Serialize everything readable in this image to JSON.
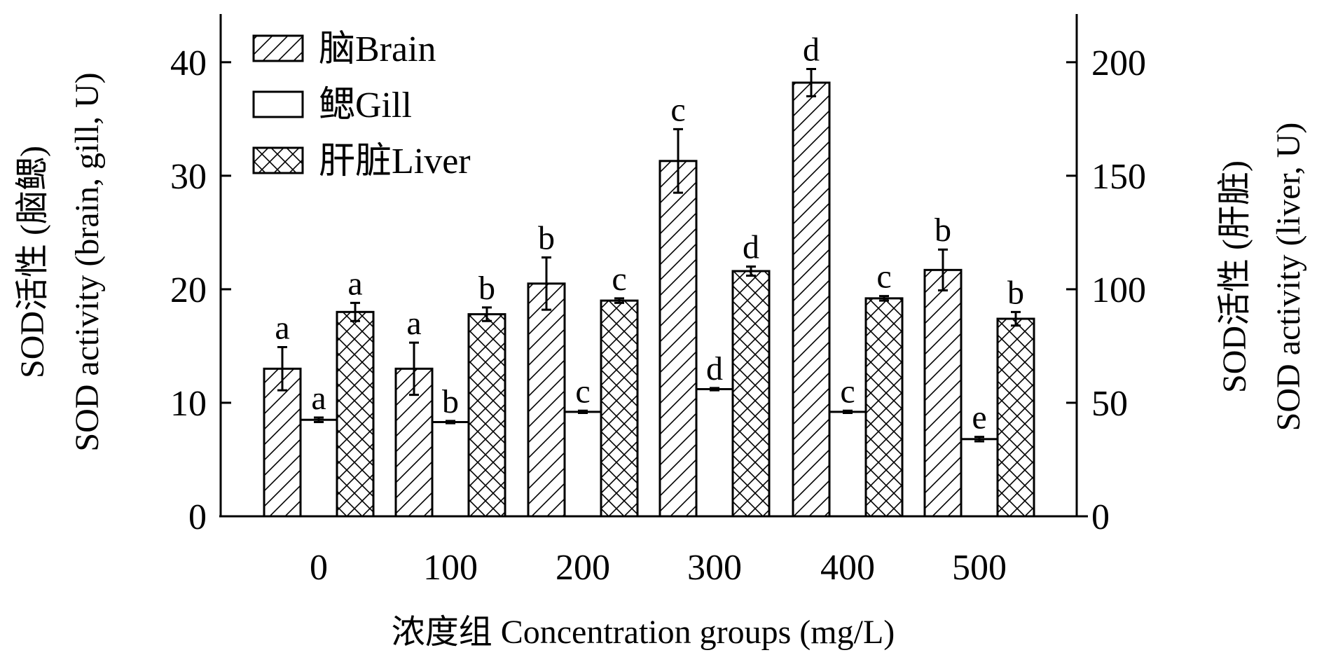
{
  "chart_data": {
    "type": "bar",
    "xlabel": "浓度组 Concentration groups (mg/L)",
    "ylabel_left_line1": "SOD活性 (脑鳃)",
    "ylabel_left_line2": "SOD activity (brain, gill, U)",
    "ylabel_right_line1": "SOD活性 (肝脏)",
    "ylabel_right_line2": "SOD activity (liver, U)",
    "categories": [
      "0",
      "100",
      "200",
      "300",
      "400",
      "500"
    ],
    "ylim_left": [
      0,
      44
    ],
    "yticks_left": [
      0,
      10,
      20,
      30,
      40
    ],
    "ylim_right": [
      0,
      220
    ],
    "yticks_right": [
      0,
      50,
      100,
      150,
      200
    ],
    "legend_position": "top-left",
    "series": [
      {
        "name": "脑Brain",
        "axis": "left",
        "pattern": "diagonal",
        "values": [
          13.0,
          13.0,
          20.5,
          31.3,
          38.2,
          21.7
        ],
        "errors": [
          1.9,
          2.3,
          2.3,
          2.8,
          1.2,
          1.8
        ],
        "letters": [
          "a",
          "a",
          "b",
          "c",
          "d",
          "b"
        ]
      },
      {
        "name": "鳃Gill",
        "axis": "left",
        "pattern": "none",
        "values": [
          8.5,
          8.3,
          9.2,
          11.2,
          9.2,
          6.8
        ],
        "errors": [
          0.2,
          0.1,
          0.1,
          0.1,
          0.1,
          0.2
        ],
        "letters": [
          "a",
          "b",
          "c",
          "d",
          "c",
          "e"
        ]
      },
      {
        "name": "肝脏Liver",
        "axis": "right",
        "pattern": "crosshatch",
        "values": [
          90,
          89,
          95,
          108,
          96,
          87
        ],
        "errors": [
          4,
          3,
          1,
          2,
          1,
          3
        ],
        "letters": [
          "a",
          "b",
          "c",
          "d",
          "c",
          "b"
        ]
      }
    ]
  }
}
